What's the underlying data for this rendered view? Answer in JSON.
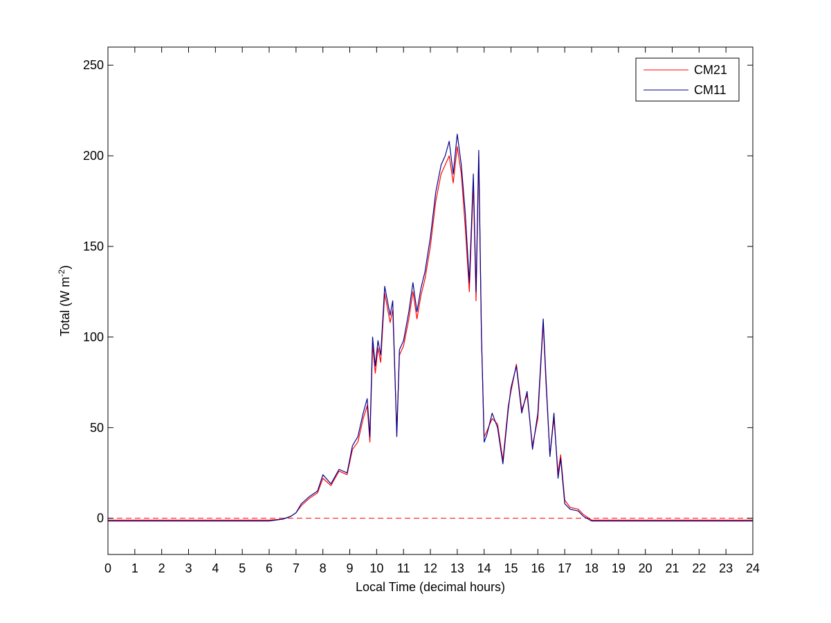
{
  "chart_data": {
    "type": "line",
    "xlabel": "Local Time (decimal hours)",
    "ylabel": {
      "prefix": "Total (W m",
      "superscript": "-2",
      "suffix": ")"
    },
    "xlim": [
      0,
      24
    ],
    "ylim": [
      -20,
      260
    ],
    "xticks": [
      0,
      1,
      2,
      3,
      4,
      5,
      6,
      7,
      8,
      9,
      10,
      11,
      12,
      13,
      14,
      15,
      16,
      17,
      18,
      19,
      20,
      21,
      22,
      23,
      24
    ],
    "yticks": [
      0,
      50,
      100,
      150,
      200,
      250
    ],
    "grid": false,
    "legend_position": "top-right",
    "reference_line": {
      "y": 0,
      "style": "dashed",
      "color": "#ff0000"
    },
    "series": [
      {
        "name": "CM21",
        "color": "#ff0000",
        "x": [
          0,
          1,
          2,
          3,
          4,
          5,
          6,
          6.5,
          6.8,
          7,
          7.2,
          7.5,
          7.8,
          8,
          8.3,
          8.6,
          8.9,
          9.1,
          9.3,
          9.5,
          9.65,
          9.75,
          9.85,
          9.95,
          10.05,
          10.15,
          10.3,
          10.5,
          10.6,
          10.75,
          10.85,
          11.0,
          11.2,
          11.35,
          11.5,
          11.65,
          11.8,
          12.0,
          12.2,
          12.4,
          12.55,
          12.7,
          12.85,
          13.0,
          13.15,
          13.3,
          13.45,
          13.6,
          13.7,
          13.8,
          13.9,
          14.0,
          14.1,
          14.3,
          14.5,
          14.7,
          14.9,
          15.0,
          15.2,
          15.4,
          15.6,
          15.8,
          16.0,
          16.2,
          16.3,
          16.45,
          16.6,
          16.75,
          16.85,
          17.0,
          17.2,
          17.5,
          17.7,
          18.0,
          19,
          20,
          21,
          22,
          23,
          24
        ],
        "y": [
          -1,
          -1,
          -1,
          -1,
          -1,
          -1,
          -1,
          -0.5,
          1,
          3,
          7,
          11,
          14,
          22,
          18,
          26,
          24,
          38,
          42,
          55,
          62,
          42,
          96,
          80,
          94,
          86,
          124,
          108,
          115,
          48,
          90,
          95,
          110,
          125,
          110,
          123,
          132,
          150,
          175,
          190,
          195,
          200,
          185,
          205,
          190,
          160,
          125,
          185,
          120,
          200,
          100,
          45,
          48,
          55,
          52,
          32,
          62,
          70,
          85,
          60,
          68,
          40,
          55,
          108,
          75,
          35,
          55,
          25,
          35,
          10,
          6,
          5,
          2,
          -1,
          -1,
          -1,
          -1,
          -1,
          -1,
          -1
        ]
      },
      {
        "name": "CM11",
        "color": "#00008b",
        "x": [
          0,
          1,
          2,
          3,
          4,
          5,
          6,
          6.5,
          6.8,
          7,
          7.2,
          7.5,
          7.8,
          8,
          8.3,
          8.6,
          8.9,
          9.1,
          9.3,
          9.5,
          9.65,
          9.75,
          9.85,
          9.95,
          10.05,
          10.15,
          10.3,
          10.5,
          10.6,
          10.75,
          10.85,
          11.0,
          11.2,
          11.35,
          11.5,
          11.65,
          11.8,
          12.0,
          12.2,
          12.4,
          12.55,
          12.7,
          12.85,
          13.0,
          13.15,
          13.3,
          13.45,
          13.6,
          13.7,
          13.8,
          13.9,
          14.0,
          14.1,
          14.3,
          14.5,
          14.7,
          14.9,
          15.0,
          15.2,
          15.4,
          15.6,
          15.8,
          16.0,
          16.2,
          16.3,
          16.45,
          16.6,
          16.75,
          16.85,
          17.0,
          17.2,
          17.5,
          17.7,
          18.0,
          19,
          20,
          21,
          22,
          23,
          24
        ],
        "y": [
          -1.5,
          -1.5,
          -1.5,
          -1.5,
          -1.5,
          -1.5,
          -1.5,
          -0.5,
          1,
          3,
          8,
          12,
          15,
          24,
          19,
          27,
          25,
          40,
          45,
          58,
          66,
          45,
          100,
          84,
          98,
          90,
          128,
          112,
          120,
          45,
          93,
          98,
          114,
          130,
          114,
          127,
          136,
          155,
          180,
          195,
          200,
          208,
          190,
          212,
          195,
          168,
          130,
          190,
          125,
          203,
          102,
          42,
          46,
          58,
          50,
          30,
          60,
          72,
          84,
          58,
          70,
          38,
          58,
          110,
          78,
          34,
          58,
          22,
          33,
          8,
          5,
          4,
          1,
          -1.5,
          -1.5,
          -1.5,
          -1.5,
          -1.5,
          -1.5,
          -1.5
        ]
      }
    ]
  }
}
